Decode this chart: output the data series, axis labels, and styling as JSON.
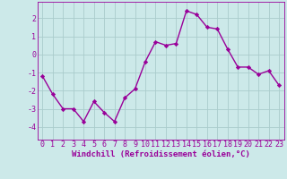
{
  "x": [
    0,
    1,
    2,
    3,
    4,
    5,
    6,
    7,
    8,
    9,
    10,
    11,
    12,
    13,
    14,
    15,
    16,
    17,
    18,
    19,
    20,
    21,
    22,
    23
  ],
  "y": [
    -1.2,
    -2.2,
    -3.0,
    -3.0,
    -3.7,
    -2.6,
    -3.2,
    -3.7,
    -2.4,
    -1.9,
    -0.4,
    0.7,
    0.5,
    0.6,
    2.4,
    2.2,
    1.5,
    1.4,
    0.3,
    -0.7,
    -0.7,
    -1.1,
    -0.9,
    -1.7
  ],
  "line_color": "#990099",
  "marker": "D",
  "marker_size": 2.2,
  "line_width": 1.0,
  "bg_color": "#cce9e9",
  "grid_color": "#aacccc",
  "xlabel": "Windchill (Refroidissement éolien,°C)",
  "xlabel_color": "#990099",
  "tick_color": "#990099",
  "xlabel_fontsize": 6.5,
  "tick_fontsize": 6,
  "yticks": [
    -4,
    -3,
    -2,
    -1,
    0,
    1,
    2
  ],
  "ylim": [
    -4.7,
    2.9
  ],
  "xlim": [
    -0.5,
    23.5
  ]
}
